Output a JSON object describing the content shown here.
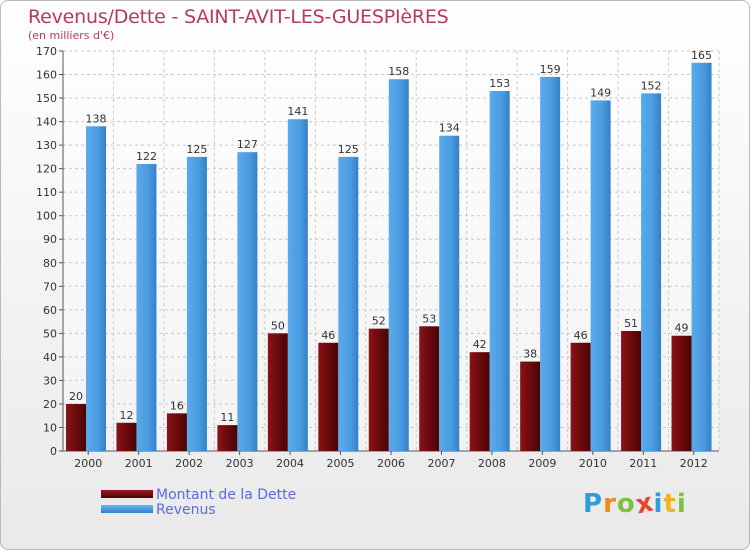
{
  "chart_data": {
    "type": "bar",
    "title": "Revenus/Dette - SAINT-AVIT-LES-GUESPIèRES",
    "subtitle": "(en milliers d'€)",
    "categories": [
      "2000",
      "2001",
      "2002",
      "2003",
      "2004",
      "2005",
      "2006",
      "2007",
      "2008",
      "2009",
      "2010",
      "2011",
      "2012"
    ],
    "series": [
      {
        "name": "Montant de la Dette",
        "color": "#7a0f12",
        "values": [
          20,
          12,
          16,
          11,
          50,
          46,
          52,
          53,
          42,
          38,
          46,
          51,
          49
        ]
      },
      {
        "name": "Revenus",
        "color": "#4ea0e4",
        "values": [
          138,
          122,
          125,
          127,
          141,
          125,
          158,
          134,
          153,
          159,
          149,
          152,
          165
        ]
      }
    ],
    "ylim": [
      0,
      170
    ],
    "yticks": [
      0,
      10,
      20,
      30,
      40,
      50,
      60,
      70,
      80,
      90,
      100,
      110,
      120,
      130,
      140,
      150,
      160,
      170
    ],
    "grid": true,
    "legend": "bottom-left"
  },
  "logo": {
    "text": "Proxiti",
    "letters": [
      {
        "char": "P",
        "color": "#2a9fd8"
      },
      {
        "char": "r",
        "color": "#f08a1c"
      },
      {
        "char": "o",
        "color": "#7cc142"
      },
      {
        "char": "x",
        "color": "#e8442e"
      },
      {
        "char": "i",
        "color": "#2a9fd8"
      },
      {
        "char": "t",
        "color": "#f0b41c"
      },
      {
        "char": "i",
        "color": "#7cc142"
      }
    ]
  }
}
